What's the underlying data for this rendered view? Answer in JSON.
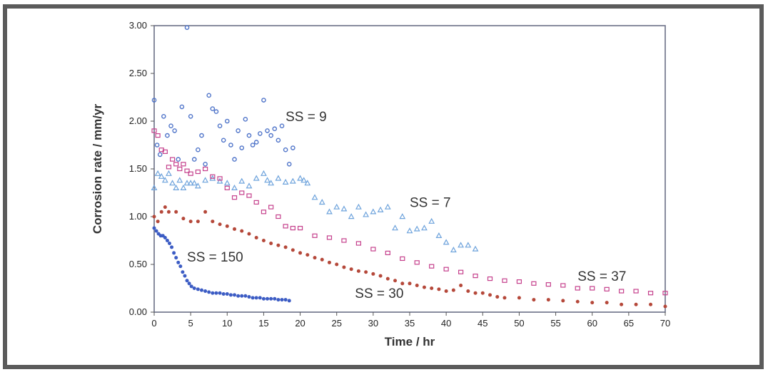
{
  "chart_data": {
    "type": "scatter",
    "xlabel": "Time / hr",
    "ylabel": "Corrosion rate / mm/yr",
    "xlim": [
      0,
      70
    ],
    "ylim": [
      0,
      3
    ],
    "xticks": [
      "0",
      "5",
      "10",
      "15",
      "20",
      "25",
      "30",
      "35",
      "40",
      "45",
      "50",
      "55",
      "60",
      "65",
      "70"
    ],
    "yticks": [
      "0.00",
      "0.50",
      "1.00",
      "1.50",
      "2.00",
      "2.50",
      "3.00"
    ],
    "grid": false,
    "annotations": [
      {
        "text": "SS = 9",
        "x": 18,
        "y": 2.0
      },
      {
        "text": "SS = 7",
        "x": 35,
        "y": 1.1
      },
      {
        "text": "SS = 150",
        "x": 4.5,
        "y": 0.53
      },
      {
        "text": "SS = 30",
        "x": 27.5,
        "y": 0.15
      },
      {
        "text": "SS = 37",
        "x": 58,
        "y": 0.33
      }
    ],
    "series": [
      {
        "marker": "circle-open",
        "color": "#4f74c9",
        "points": [
          [
            0,
            2.22
          ],
          [
            0.4,
            1.75
          ],
          [
            0.8,
            1.65
          ],
          [
            1.3,
            2.05
          ],
          [
            1.8,
            1.85
          ],
          [
            2.3,
            1.95
          ],
          [
            2.8,
            1.9
          ],
          [
            3.3,
            1.6
          ],
          [
            3.8,
            2.15
          ],
          [
            4.5,
            2.98
          ],
          [
            5.0,
            2.05
          ],
          [
            5.5,
            1.6
          ],
          [
            6.0,
            1.7
          ],
          [
            6.5,
            1.85
          ],
          [
            7.0,
            1.55
          ],
          [
            7.5,
            2.27
          ],
          [
            8.0,
            2.13
          ],
          [
            8.5,
            2.1
          ],
          [
            9.0,
            1.95
          ],
          [
            9.5,
            1.8
          ],
          [
            10.0,
            2.0
          ],
          [
            10.5,
            1.75
          ],
          [
            11.0,
            1.6
          ],
          [
            11.5,
            1.9
          ],
          [
            12.0,
            1.72
          ],
          [
            12.5,
            2.02
          ],
          [
            13.0,
            1.85
          ],
          [
            13.5,
            1.75
          ],
          [
            14.0,
            1.78
          ],
          [
            14.5,
            1.87
          ],
          [
            15.0,
            2.22
          ],
          [
            15.5,
            1.9
          ],
          [
            16.0,
            1.85
          ],
          [
            16.5,
            1.92
          ],
          [
            17.0,
            1.8
          ],
          [
            17.5,
            1.95
          ],
          [
            18.0,
            1.7
          ],
          [
            18.5,
            1.55
          ],
          [
            19.0,
            1.72
          ]
        ]
      },
      {
        "marker": "triangle-open",
        "color": "#6ea3dc",
        "points": [
          [
            0,
            1.3
          ],
          [
            0.5,
            1.45
          ],
          [
            1,
            1.42
          ],
          [
            1.5,
            1.38
          ],
          [
            2,
            1.45
          ],
          [
            2.5,
            1.35
          ],
          [
            3,
            1.3
          ],
          [
            3.5,
            1.38
          ],
          [
            4,
            1.3
          ],
          [
            4.5,
            1.35
          ],
          [
            5,
            1.35
          ],
          [
            5.5,
            1.35
          ],
          [
            6,
            1.32
          ],
          [
            7,
            1.38
          ],
          [
            8,
            1.4
          ],
          [
            9,
            1.37
          ],
          [
            10,
            1.35
          ],
          [
            11,
            1.3
          ],
          [
            12,
            1.37
          ],
          [
            13,
            1.32
          ],
          [
            14,
            1.4
          ],
          [
            15,
            1.45
          ],
          [
            15.5,
            1.38
          ],
          [
            16,
            1.35
          ],
          [
            17,
            1.4
          ],
          [
            18,
            1.36
          ],
          [
            19,
            1.37
          ],
          [
            20,
            1.4
          ],
          [
            20.5,
            1.38
          ],
          [
            21,
            1.35
          ],
          [
            22,
            1.2
          ],
          [
            23,
            1.15
          ],
          [
            24,
            1.05
          ],
          [
            25,
            1.1
          ],
          [
            26,
            1.08
          ],
          [
            27,
            1.0
          ],
          [
            28,
            1.1
          ],
          [
            29,
            1.02
          ],
          [
            30,
            1.05
          ],
          [
            31,
            1.07
          ],
          [
            32,
            1.1
          ],
          [
            33,
            0.88
          ],
          [
            34,
            1.0
          ],
          [
            35,
            0.85
          ],
          [
            36,
            0.87
          ],
          [
            37,
            0.88
          ],
          [
            38,
            0.95
          ],
          [
            39,
            0.8
          ],
          [
            40,
            0.73
          ],
          [
            41,
            0.65
          ],
          [
            42,
            0.7
          ],
          [
            43,
            0.7
          ],
          [
            44,
            0.66
          ]
        ]
      },
      {
        "marker": "square-open",
        "color": "#c5408c",
        "points": [
          [
            0,
            1.9
          ],
          [
            0.5,
            1.85
          ],
          [
            1,
            1.7
          ],
          [
            1.5,
            1.68
          ],
          [
            2,
            1.52
          ],
          [
            2.5,
            1.6
          ],
          [
            3,
            1.55
          ],
          [
            3.5,
            1.5
          ],
          [
            4,
            1.55
          ],
          [
            4.5,
            1.48
          ],
          [
            5,
            1.45
          ],
          [
            6,
            1.47
          ],
          [
            7,
            1.5
          ],
          [
            8,
            1.42
          ],
          [
            9,
            1.4
          ],
          [
            10,
            1.3
          ],
          [
            11,
            1.2
          ],
          [
            12,
            1.25
          ],
          [
            13,
            1.22
          ],
          [
            14,
            1.15
          ],
          [
            15,
            1.05
          ],
          [
            16,
            1.1
          ],
          [
            17,
            1.0
          ],
          [
            18,
            0.9
          ],
          [
            19,
            0.88
          ],
          [
            20,
            0.88
          ],
          [
            22,
            0.8
          ],
          [
            24,
            0.78
          ],
          [
            26,
            0.75
          ],
          [
            28,
            0.72
          ],
          [
            30,
            0.66
          ],
          [
            32,
            0.62
          ],
          [
            34,
            0.56
          ],
          [
            36,
            0.52
          ],
          [
            38,
            0.48
          ],
          [
            40,
            0.45
          ],
          [
            42,
            0.42
          ],
          [
            44,
            0.38
          ],
          [
            46,
            0.35
          ],
          [
            48,
            0.33
          ],
          [
            50,
            0.32
          ],
          [
            52,
            0.3
          ],
          [
            54,
            0.29
          ],
          [
            56,
            0.28
          ],
          [
            58,
            0.25
          ],
          [
            60,
            0.25
          ],
          [
            62,
            0.24
          ],
          [
            64,
            0.22
          ],
          [
            66,
            0.22
          ],
          [
            68,
            0.2
          ],
          [
            70,
            0.2
          ]
        ]
      },
      {
        "marker": "circle-filled",
        "color": "#b5483a",
        "points": [
          [
            0,
            1.0
          ],
          [
            0.5,
            0.95
          ],
          [
            1,
            1.05
          ],
          [
            1.5,
            1.1
          ],
          [
            2,
            1.05
          ],
          [
            3,
            1.05
          ],
          [
            4,
            0.98
          ],
          [
            5,
            0.95
          ],
          [
            6,
            0.95
          ],
          [
            7,
            1.05
          ],
          [
            8,
            0.95
          ],
          [
            9,
            0.92
          ],
          [
            10,
            0.9
          ],
          [
            11,
            0.87
          ],
          [
            12,
            0.85
          ],
          [
            13,
            0.82
          ],
          [
            14,
            0.78
          ],
          [
            15,
            0.75
          ],
          [
            16,
            0.72
          ],
          [
            17,
            0.7
          ],
          [
            18,
            0.68
          ],
          [
            19,
            0.65
          ],
          [
            20,
            0.62
          ],
          [
            21,
            0.6
          ],
          [
            22,
            0.57
          ],
          [
            23,
            0.55
          ],
          [
            24,
            0.52
          ],
          [
            25,
            0.5
          ],
          [
            26,
            0.47
          ],
          [
            27,
            0.45
          ],
          [
            28,
            0.43
          ],
          [
            29,
            0.42
          ],
          [
            30,
            0.4
          ],
          [
            31,
            0.38
          ],
          [
            32,
            0.35
          ],
          [
            33,
            0.33
          ],
          [
            34,
            0.3
          ],
          [
            35,
            0.3
          ],
          [
            36,
            0.28
          ],
          [
            37,
            0.26
          ],
          [
            38,
            0.25
          ],
          [
            39,
            0.24
          ],
          [
            40,
            0.22
          ],
          [
            41,
            0.23
          ],
          [
            42,
            0.28
          ],
          [
            43,
            0.22
          ],
          [
            44,
            0.2
          ],
          [
            45,
            0.2
          ],
          [
            46,
            0.18
          ],
          [
            47,
            0.16
          ],
          [
            48,
            0.15
          ],
          [
            50,
            0.15
          ],
          [
            52,
            0.13
          ],
          [
            54,
            0.13
          ],
          [
            56,
            0.12
          ],
          [
            58,
            0.11
          ],
          [
            60,
            0.1
          ],
          [
            62,
            0.1
          ],
          [
            64,
            0.08
          ],
          [
            66,
            0.08
          ],
          [
            68,
            0.08
          ],
          [
            70,
            0.06
          ]
        ]
      },
      {
        "marker": "circle-filled",
        "color": "#3c5cc4",
        "points": [
          [
            0,
            0.88
          ],
          [
            0.3,
            0.85
          ],
          [
            0.6,
            0.82
          ],
          [
            0.9,
            0.8
          ],
          [
            1.2,
            0.8
          ],
          [
            1.5,
            0.78
          ],
          [
            1.8,
            0.75
          ],
          [
            2.1,
            0.72
          ],
          [
            2.4,
            0.68
          ],
          [
            2.7,
            0.62
          ],
          [
            3.0,
            0.57
          ],
          [
            3.3,
            0.52
          ],
          [
            3.6,
            0.48
          ],
          [
            3.9,
            0.42
          ],
          [
            4.2,
            0.38
          ],
          [
            4.5,
            0.33
          ],
          [
            4.8,
            0.3
          ],
          [
            5.1,
            0.27
          ],
          [
            5.5,
            0.25
          ],
          [
            6,
            0.24
          ],
          [
            6.5,
            0.23
          ],
          [
            7,
            0.22
          ],
          [
            7.5,
            0.21
          ],
          [
            8,
            0.2
          ],
          [
            8.5,
            0.2
          ],
          [
            9,
            0.2
          ],
          [
            9.5,
            0.19
          ],
          [
            10,
            0.19
          ],
          [
            10.5,
            0.18
          ],
          [
            11,
            0.18
          ],
          [
            11.5,
            0.17
          ],
          [
            12,
            0.17
          ],
          [
            12.5,
            0.17
          ],
          [
            13,
            0.16
          ],
          [
            13.5,
            0.15
          ],
          [
            14,
            0.15
          ],
          [
            14.5,
            0.15
          ],
          [
            15,
            0.14
          ],
          [
            15.5,
            0.14
          ],
          [
            16,
            0.14
          ],
          [
            16.5,
            0.14
          ],
          [
            17,
            0.13
          ],
          [
            17.5,
            0.13
          ],
          [
            18,
            0.13
          ],
          [
            18.5,
            0.12
          ]
        ]
      }
    ]
  }
}
